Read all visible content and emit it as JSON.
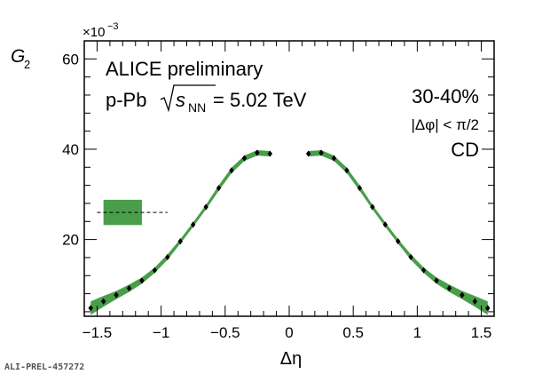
{
  "chart_data": {
    "type": "scatter",
    "title": "",
    "xlabel": "Δη",
    "ylabel": "G",
    "ylabel_sub": "2",
    "y_multiplier": "×10",
    "y_multiplier_exp": "−3",
    "xlim": [
      -1.6,
      1.6
    ],
    "ylim": [
      3,
      64
    ],
    "x_ticks": [
      -1.5,
      -1,
      -0.5,
      0,
      0.5,
      1,
      1.5
    ],
    "x_tick_labels": [
      "−1.5",
      "−1",
      "−0.5",
      "0",
      "0.5",
      "1",
      "1.5"
    ],
    "y_ticks": [
      20,
      40,
      60
    ],
    "y_tick_labels": [
      "20",
      "40",
      "60"
    ],
    "grid": false,
    "series": [
      {
        "x": [
          -1.55,
          -1.45,
          -1.35,
          -1.25,
          -1.15,
          -1.05,
          -0.95,
          -0.85,
          -0.75,
          -0.65,
          -0.55,
          -0.45,
          -0.35,
          -0.25,
          -0.15,
          0.15,
          0.25,
          0.35,
          0.45,
          0.55,
          0.65,
          0.75,
          0.85,
          0.95,
          1.05,
          1.15,
          1.25,
          1.35,
          1.45,
          1.55
        ],
        "values": [
          4.8,
          6.3,
          7.7,
          9.2,
          10.9,
          13.2,
          16.1,
          19.6,
          23.3,
          27.2,
          31.4,
          35.3,
          38.0,
          39.2,
          39.0,
          39.0,
          39.2,
          38.0,
          35.3,
          31.4,
          27.2,
          23.3,
          19.6,
          16.1,
          13.2,
          10.9,
          9.2,
          7.7,
          6.3,
          4.8
        ],
        "systematic_halfwidth": [
          1.5,
          1.2,
          0.9,
          0.8,
          0.7,
          0.6,
          0.6,
          0.5,
          0.5,
          0.5,
          0.6,
          0.6,
          0.6,
          0.6,
          0.6,
          0.6,
          0.6,
          0.6,
          0.6,
          0.6,
          0.5,
          0.5,
          0.5,
          0.6,
          0.6,
          0.7,
          0.8,
          0.9,
          1.2,
          1.5
        ],
        "marker": "diamond",
        "marker_color": "#000000",
        "band_color": "#4a9e4a"
      }
    ],
    "scale_uncertainty_box": {
      "x_range": [
        -1.45,
        -1.15
      ],
      "y_center": 26,
      "halfwidth": 2.8,
      "dashed_line_x_range": [
        -1.5,
        -0.95
      ],
      "color": "#4a9e4a"
    },
    "annotations": {
      "experiment": "ALICE preliminary",
      "system": "p-Pb",
      "energy_prefix": "s",
      "energy_sub": "NN",
      "energy_value": " = 5.02 TeV",
      "centrality": "30-40%",
      "phi_cut": "|Δφ| < π/2",
      "charge_combo": "CD"
    },
    "figure_id": "ALI-PREL-457272"
  }
}
